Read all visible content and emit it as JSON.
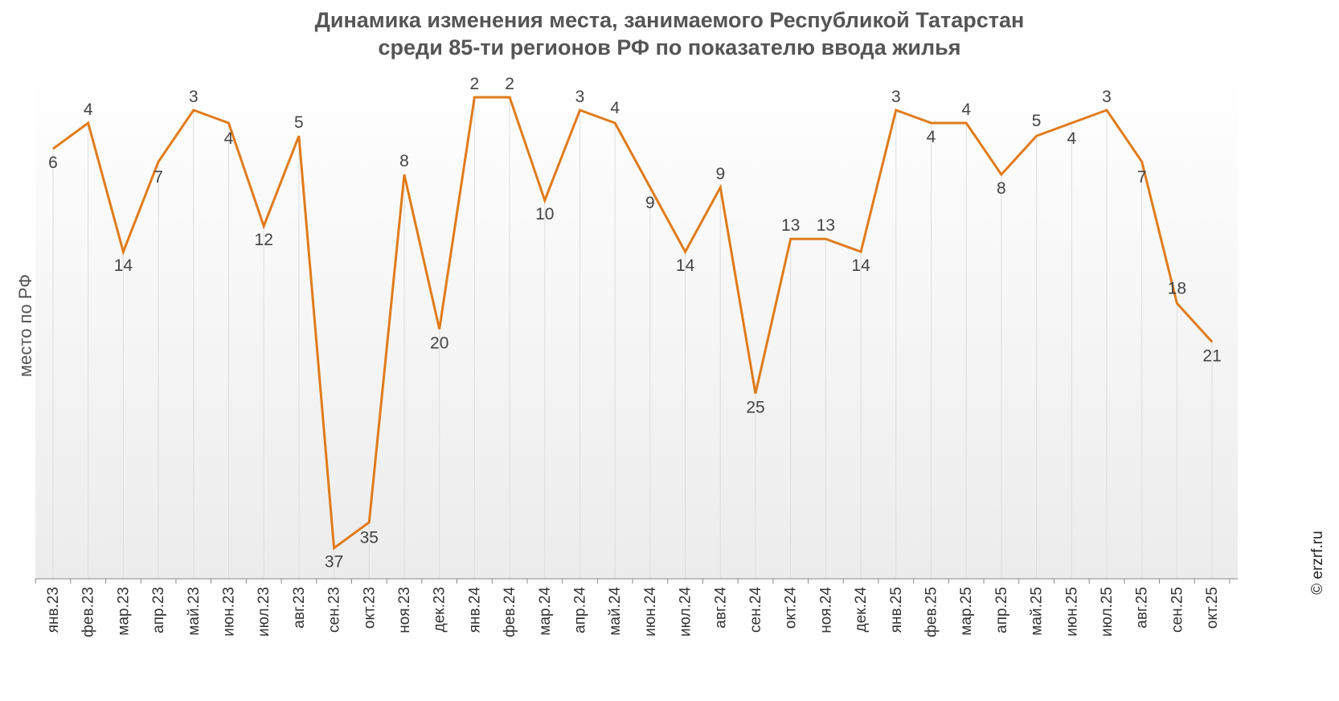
{
  "title_line1": "Динамика изменения места, занимаемого Республикой Татарстан",
  "title_line2": "среди 85-ти регионов РФ по показателю ввода жилья",
  "credit": "© erzrf.ru",
  "colors": {
    "line": "#E07B1A",
    "grid": "#dddddd"
  },
  "chart_data": {
    "type": "line",
    "title": "Динамика изменения места, занимаемого Республикой Татарстан среди 85-ти регионов РФ по показателю ввода жилья",
    "xlabel": "",
    "ylabel": "место по РФ",
    "y_inverted": true,
    "ylim": [
      1,
      40
    ],
    "grid": "vertical",
    "categories": [
      "янв.23",
      "фев.23",
      "мар.23",
      "апр.23",
      "май.23",
      "июн.23",
      "июл.23",
      "авг.23",
      "сен.23",
      "окт.23",
      "ноя.23",
      "дек.23",
      "янв.24",
      "фев.24",
      "мар.24",
      "апр.24",
      "май.24",
      "июн.24",
      "июл.24",
      "авг.24",
      "сен.24",
      "окт.24",
      "ноя.24",
      "дек.24",
      "янв.25",
      "фев.25",
      "мар.25",
      "апр.25",
      "май.25",
      "июн.25",
      "июл.25",
      "авг.25",
      "сен.25",
      "окт.25"
    ],
    "series": [
      {
        "values": [
          6,
          4,
          14,
          7,
          3,
          4,
          12,
          5,
          37,
          35,
          8,
          20,
          2,
          2,
          10,
          3,
          4,
          9,
          14,
          9,
          25,
          13,
          13,
          14,
          3,
          4,
          4,
          8,
          5,
          4,
          3,
          7,
          18,
          21
        ]
      }
    ]
  }
}
